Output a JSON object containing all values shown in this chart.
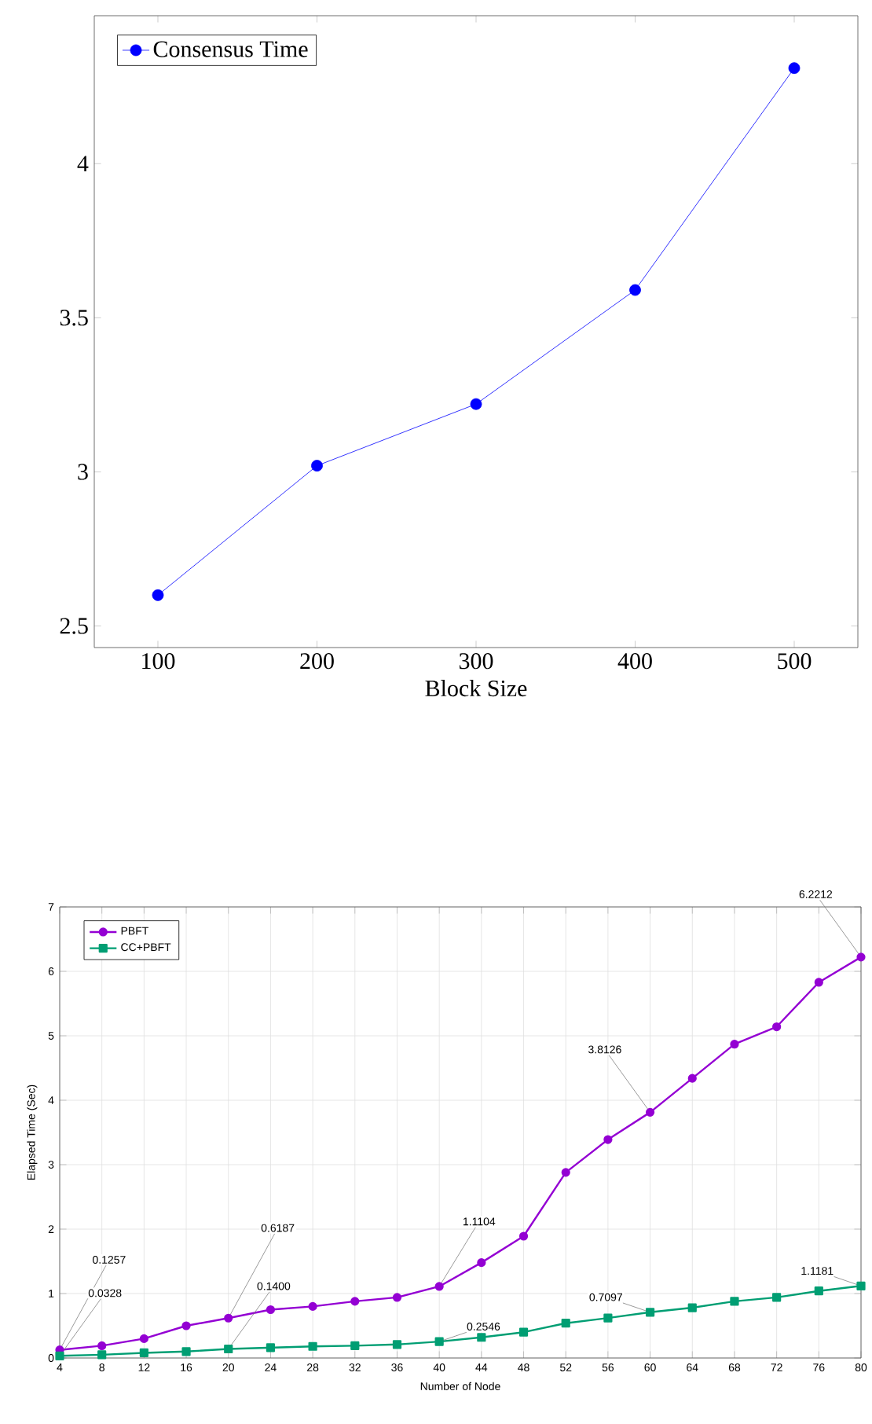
{
  "chart_data": [
    {
      "type": "line",
      "xlabel": "Block Size",
      "x": [
        100,
        200,
        300,
        400,
        500
      ],
      "xlim": [
        60,
        540
      ],
      "ylim": [
        2.43,
        4.48
      ],
      "xticks": [
        100,
        200,
        300,
        400,
        500
      ],
      "yticks": [
        2.5,
        3,
        3.5,
        4
      ],
      "legend": "top left",
      "marker": "circle",
      "line_style": "solid",
      "series": [
        {
          "name": "Consensus Time",
          "color": "#0000ff",
          "values": [
            2.6,
            3.02,
            3.22,
            3.59,
            4.31
          ]
        }
      ]
    },
    {
      "type": "line",
      "xlabel": "Number of Node",
      "ylabel": "Elapsed Time (Sec)",
      "x": [
        4,
        8,
        12,
        16,
        20,
        24,
        28,
        32,
        36,
        40,
        44,
        48,
        52,
        56,
        60,
        64,
        68,
        72,
        76,
        80
      ],
      "xlim": [
        4,
        80
      ],
      "ylim": [
        0,
        7
      ],
      "xticks": [
        4,
        8,
        12,
        16,
        20,
        24,
        28,
        32,
        36,
        40,
        44,
        48,
        52,
        56,
        60,
        64,
        68,
        72,
        76,
        80
      ],
      "yticks": [
        0,
        1,
        2,
        3,
        4,
        5,
        6,
        7
      ],
      "grid": true,
      "legend": "top left",
      "line_style": "solid",
      "series": [
        {
          "name": "PBFT",
          "color": "#9400d3",
          "marker": "circle",
          "values": [
            0.1257,
            0.19,
            0.3,
            0.5,
            0.6187,
            0.75,
            0.8,
            0.88,
            0.94,
            1.1104,
            1.48,
            1.89,
            2.88,
            3.39,
            3.8126,
            4.34,
            4.87,
            5.14,
            5.83,
            6.2212
          ]
        },
        {
          "name": "CC+PBFT",
          "color": "#009e73",
          "marker": "square",
          "values": [
            0.0328,
            0.05,
            0.08,
            0.1,
            0.14,
            0.16,
            0.18,
            0.19,
            0.21,
            0.2546,
            0.32,
            0.4,
            0.54,
            0.62,
            0.7097,
            0.78,
            0.88,
            0.94,
            1.04,
            1.1181
          ]
        }
      ],
      "annotations": [
        {
          "text": "0.1257",
          "x": 4,
          "y": 0.1257
        },
        {
          "text": "0.0328",
          "x": 4,
          "y": 0.0328
        },
        {
          "text": "0.6187",
          "x": 20,
          "y": 0.6187
        },
        {
          "text": "0.1400",
          "x": 20,
          "y": 0.14
        },
        {
          "text": "1.1104",
          "x": 40,
          "y": 1.1104
        },
        {
          "text": "0.2546",
          "x": 40,
          "y": 0.2546
        },
        {
          "text": "3.8126",
          "x": 60,
          "y": 3.8126
        },
        {
          "text": "0.7097",
          "x": 60,
          "y": 0.7097
        },
        {
          "text": "6.2212",
          "x": 80,
          "y": 6.2212
        },
        {
          "text": "1.1181",
          "x": 80,
          "y": 1.1181
        }
      ]
    }
  ]
}
